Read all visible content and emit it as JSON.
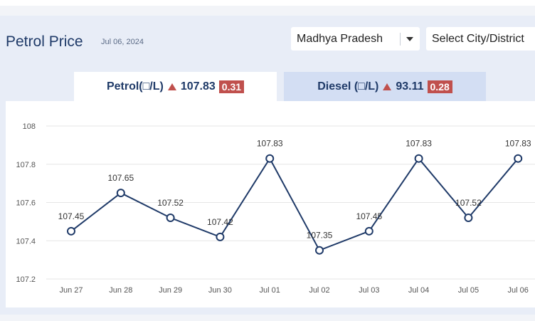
{
  "header": {
    "title": "Petrol Price",
    "date": "Jul 06, 2024",
    "state_select": "Madhya Pradesh",
    "city_select": "Select City/District"
  },
  "tabs": {
    "petrol": {
      "label": "Petrol(□/L)",
      "price": "107.83",
      "change": "0.31"
    },
    "diesel": {
      "label": "Diesel (□/L)",
      "price": "93.11",
      "change": "0.28"
    }
  },
  "colors": {
    "line": "#1f3a68",
    "grid": "#e5e5e5",
    "badge": "#c0504d",
    "up_icon": "#c0504d"
  },
  "chart_data": {
    "type": "line",
    "categories": [
      "Jun 27",
      "Jun 28",
      "Jun 29",
      "Jun 30",
      "Jul 01",
      "Jul 02",
      "Jul 03",
      "Jul 04",
      "Jul 05",
      "Jul 06"
    ],
    "series": [
      {
        "values": [
          107.45,
          107.65,
          107.52,
          107.42,
          107.83,
          107.35,
          107.45,
          107.83,
          107.52,
          107.83
        ]
      }
    ],
    "data_labels": [
      "107.45",
      "107.65",
      "107.52",
      "107.42",
      "107.83",
      "107.35",
      "107.45",
      "107.83",
      "107.52",
      "107.83"
    ],
    "yticks": [
      "108",
      "107.8",
      "107.6",
      "107.4",
      "107.2"
    ],
    "ylim": [
      107.2,
      108
    ],
    "grid": true
  }
}
